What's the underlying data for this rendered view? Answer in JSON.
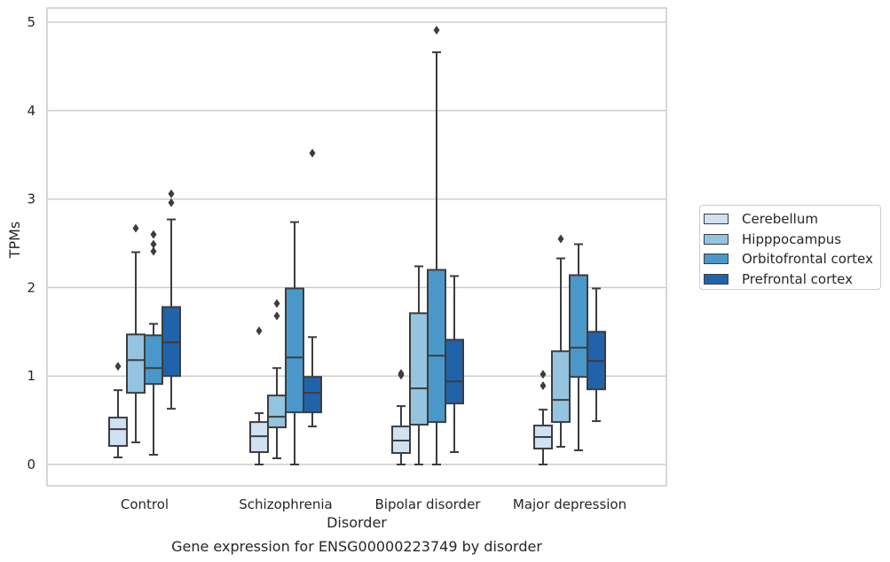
{
  "chart_data": {
    "type": "box",
    "caption": "Gene expression for ENSG00000223749 by disorder",
    "xlabel": "Disorder",
    "ylabel": "TPMs",
    "ylim": [
      -0.24,
      5.16
    ],
    "yticks": [
      0,
      1,
      2,
      3,
      4,
      5
    ],
    "grid": "horizontal",
    "legend_position": "right",
    "categories": [
      "Control",
      "Schizophrenia",
      "Bipolar disorder",
      "Major depression"
    ],
    "series": [
      {
        "name": "Cerebellum",
        "color": "#d0e1f2",
        "boxes": [
          {
            "whisker_low": 0.08,
            "q1": 0.21,
            "median": 0.4,
            "q3": 0.53,
            "whisker_high": 0.84,
            "outliers": [
              1.11
            ]
          },
          {
            "whisker_low": 0.0,
            "q1": 0.14,
            "median": 0.32,
            "q3": 0.48,
            "whisker_high": 0.58,
            "outliers": [
              1.51
            ]
          },
          {
            "whisker_low": 0.0,
            "q1": 0.13,
            "median": 0.27,
            "q3": 0.43,
            "whisker_high": 0.66,
            "outliers": [
              1.01,
              1.03
            ]
          },
          {
            "whisker_low": 0.0,
            "q1": 0.18,
            "median": 0.31,
            "q3": 0.44,
            "whisker_high": 0.62,
            "outliers": [
              0.89,
              1.02
            ]
          }
        ]
      },
      {
        "name": "Hipppocampus",
        "color": "#94c4df",
        "boxes": [
          {
            "whisker_low": 0.25,
            "q1": 0.81,
            "median": 1.18,
            "q3": 1.47,
            "whisker_high": 2.4,
            "outliers": [
              2.67
            ]
          },
          {
            "whisker_low": 0.07,
            "q1": 0.42,
            "median": 0.54,
            "q3": 0.78,
            "whisker_high": 1.09,
            "outliers": [
              1.68,
              1.82
            ]
          },
          {
            "whisker_low": 0.0,
            "q1": 0.45,
            "median": 0.86,
            "q3": 1.71,
            "whisker_high": 2.24,
            "outliers": []
          },
          {
            "whisker_low": 0.2,
            "q1": 0.48,
            "median": 0.73,
            "q3": 1.28,
            "whisker_high": 2.33,
            "outliers": [
              2.55
            ]
          }
        ]
      },
      {
        "name": "Orbitofrontal cortex",
        "color": "#4a98c9",
        "boxes": [
          {
            "whisker_low": 0.11,
            "q1": 0.91,
            "median": 1.09,
            "q3": 1.46,
            "whisker_high": 1.59,
            "outliers": [
              2.41,
              2.49,
              2.6
            ]
          },
          {
            "whisker_low": 0.0,
            "q1": 0.59,
            "median": 1.21,
            "q3": 1.99,
            "whisker_high": 2.74,
            "outliers": []
          },
          {
            "whisker_low": 0.0,
            "q1": 0.48,
            "median": 1.23,
            "q3": 2.2,
            "whisker_high": 4.66,
            "outliers": [
              4.91
            ]
          },
          {
            "whisker_low": 0.16,
            "q1": 0.99,
            "median": 1.32,
            "q3": 2.14,
            "whisker_high": 2.49,
            "outliers": []
          }
        ]
      },
      {
        "name": "Prefrontal cortex",
        "color": "#2163aa",
        "boxes": [
          {
            "whisker_low": 0.63,
            "q1": 1.0,
            "median": 1.38,
            "q3": 1.78,
            "whisker_high": 2.77,
            "outliers": [
              2.96,
              3.06
            ]
          },
          {
            "whisker_low": 0.43,
            "q1": 0.59,
            "median": 0.81,
            "q3": 0.99,
            "whisker_high": 1.44,
            "outliers": [
              3.52
            ]
          },
          {
            "whisker_low": 0.14,
            "q1": 0.69,
            "median": 0.94,
            "q3": 1.41,
            "whisker_high": 2.13,
            "outliers": []
          },
          {
            "whisker_low": 0.49,
            "q1": 0.85,
            "median": 1.17,
            "q3": 1.5,
            "whisker_high": 1.99,
            "outliers": []
          }
        ]
      }
    ]
  }
}
